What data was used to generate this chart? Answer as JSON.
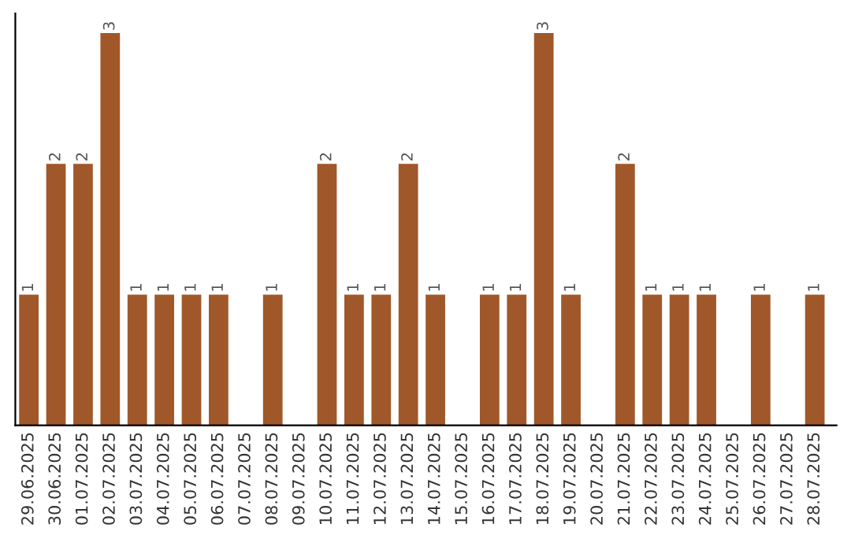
{
  "chart_data": {
    "type": "bar",
    "categories": [
      "29.06.2025",
      "30.06.2025",
      "01.07.2025",
      "02.07.2025",
      "03.07.2025",
      "04.07.2025",
      "05.07.2025",
      "06.07.2025",
      "07.07.2025",
      "08.07.2025",
      "09.07.2025",
      "10.07.2025",
      "11.07.2025",
      "12.07.2025",
      "13.07.2025",
      "14.07.2025",
      "15.07.2025",
      "16.07.2025",
      "17.07.2025",
      "18.07.2025",
      "19.07.2025",
      "20.07.2025",
      "21.07.2025",
      "22.07.2025",
      "23.07.2025",
      "24.07.2025",
      "25.07.2025",
      "26.07.2025",
      "27.07.2025",
      "28.07.2025"
    ],
    "values": [
      1,
      2,
      2,
      3,
      1,
      1,
      1,
      1,
      0,
      1,
      0,
      2,
      1,
      1,
      2,
      1,
      0,
      1,
      1,
      3,
      1,
      0,
      2,
      1,
      1,
      1,
      0,
      1,
      0,
      1
    ],
    "value_labels": [
      "1",
      "2",
      "2",
      "3",
      "1",
      "1",
      "1",
      "1",
      null,
      "1",
      null,
      "2",
      "1",
      "1",
      "2",
      "1",
      null,
      "1",
      "1",
      "3",
      "1",
      null,
      "2",
      "1",
      "1",
      "1",
      null,
      "1",
      null,
      "1"
    ],
    "color": "#a0582a",
    "tick_labels": "x",
    "grid": false
  }
}
